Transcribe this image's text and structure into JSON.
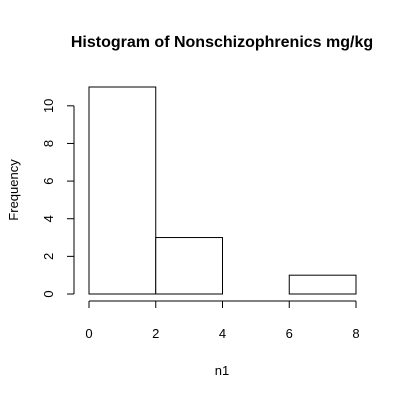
{
  "chart_data": {
    "type": "bar",
    "title": "Histogram of Nonschizophrenics mg/kg",
    "xlabel": "n1",
    "ylabel": "Frequency",
    "bins": [
      {
        "start": 0,
        "end": 2,
        "count": 11
      },
      {
        "start": 2,
        "end": 4,
        "count": 3
      },
      {
        "start": 4,
        "end": 6,
        "count": 0
      },
      {
        "start": 6,
        "end": 8,
        "count": 1
      }
    ],
    "xlim": [
      0,
      8
    ],
    "ylim": [
      0,
      11
    ],
    "xticks": [
      "0",
      "2",
      "4",
      "6",
      "8"
    ],
    "yticks": [
      "0",
      "2",
      "4",
      "6",
      "8",
      "10"
    ],
    "grid": false,
    "bar_fill": "#ffffff",
    "bar_stroke": "#000000"
  }
}
